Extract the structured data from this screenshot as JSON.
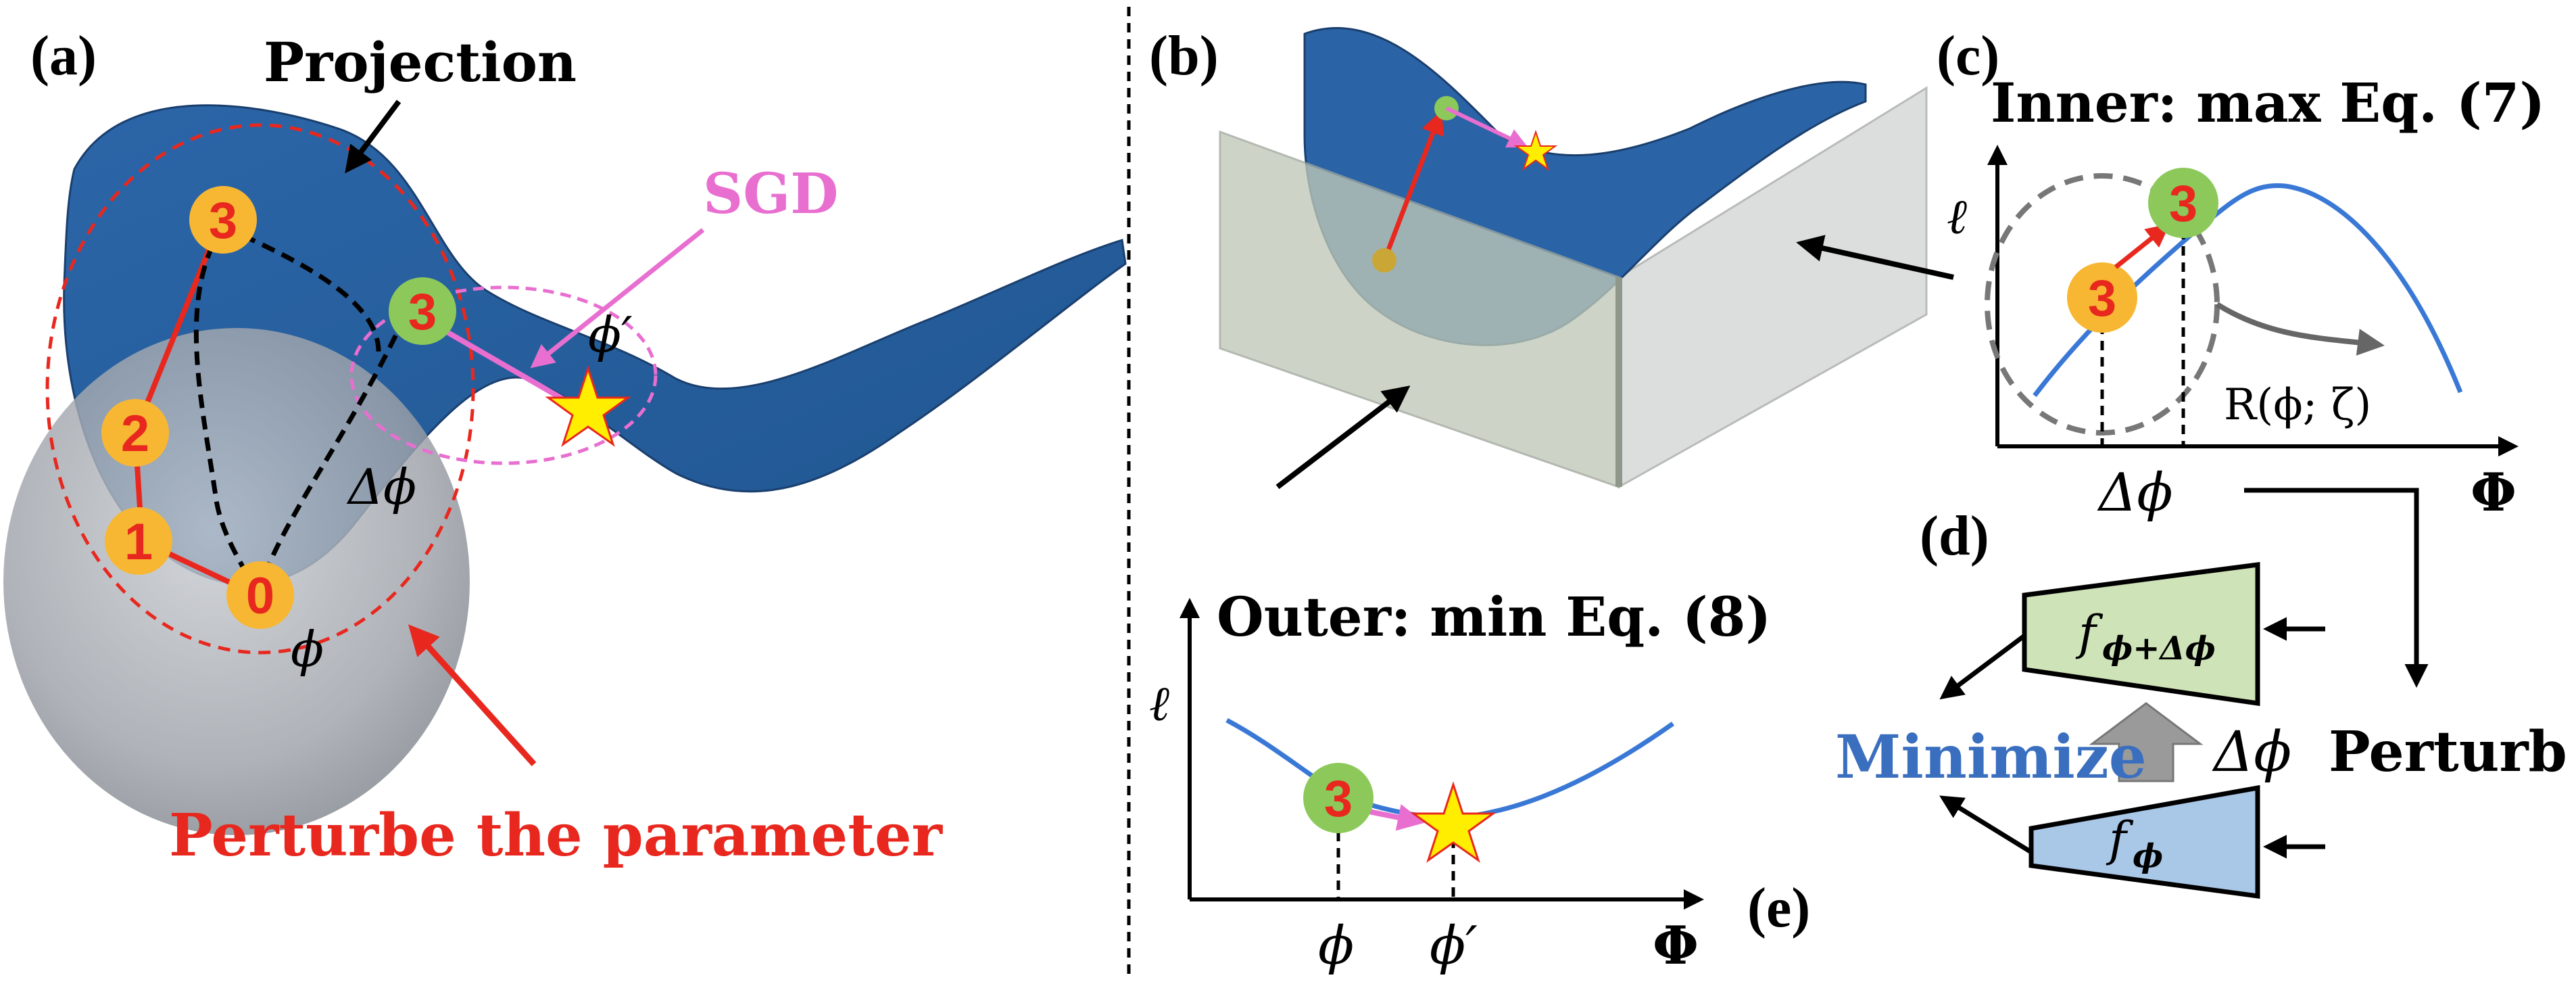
{
  "panel_a": {
    "label": "(a)",
    "projection": "Projection",
    "sgd": "SGD",
    "perturb": "Perturbe the parameter",
    "phi": "ϕ",
    "phi_prime": "ϕ′",
    "delta_phi": "Δϕ",
    "steps": [
      "0",
      "1",
      "2",
      "3"
    ],
    "green_step": "3"
  },
  "panel_b": {
    "label": "(b)"
  },
  "panel_c": {
    "label": "(c)",
    "title": "Inner: max Eq. (7)",
    "ylabel": "ℓ",
    "xlabel": "Φ",
    "region": "R(ϕ; ζ)",
    "yellow_step": "3",
    "green_step": "3",
    "delta_phi": "Δϕ"
  },
  "panel_d": {
    "label": "(d)",
    "f_top": "f",
    "f_top_sub": "ϕ+Δϕ",
    "f_bottom": "f",
    "f_bottom_sub": "ϕ",
    "minimize": "Minimize",
    "perturb": "Perturb",
    "delta_phi": "Δϕ"
  },
  "panel_e": {
    "label": "(e)",
    "title": "Outer: min  Eq. (8)",
    "ylabel": "ℓ",
    "xlabel": "Φ",
    "phi": "ϕ",
    "phi_prime": "ϕ′",
    "green_step": "3"
  },
  "colors": {
    "surface": "#2a64a6",
    "surface_dark": "#1d4a7f",
    "red": "#e8281e",
    "pink": "#e86fd0",
    "yellow_circle": "#f7b733",
    "green_circle": "#8cc95a",
    "curve_blue": "#3a78d6",
    "box_green": "#cfe3b8",
    "box_blue": "#a9c7e6",
    "minimize_blue": "#3a6fbf"
  }
}
